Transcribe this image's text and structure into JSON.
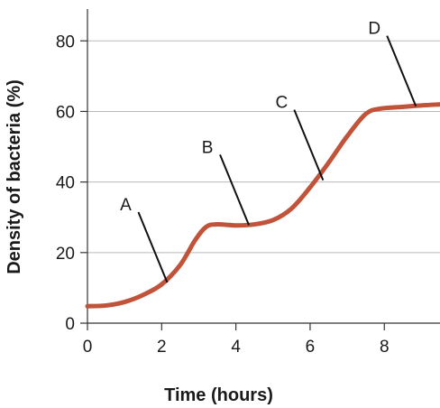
{
  "chart_data": {
    "type": "line",
    "title": "",
    "xlabel": "Time (hours)",
    "ylabel": "Density of bacteria (%)",
    "xlim": [
      0,
      9.5
    ],
    "ylim": [
      0,
      88
    ],
    "x_ticks": [
      0,
      2,
      4,
      6,
      8
    ],
    "y_ticks": [
      0,
      20,
      40,
      60,
      80
    ],
    "grid": "horizontal",
    "series": [
      {
        "color": "#c0533a",
        "x": [
          0,
          0.5,
          1.0,
          1.5,
          2.0,
          2.5,
          2.9,
          3.2,
          3.5,
          4.0,
          4.5,
          5.0,
          5.5,
          6.0,
          6.5,
          7.0,
          7.5,
          7.9,
          8.5,
          9.0,
          9.5
        ],
        "y": [
          4.8,
          5.0,
          6.0,
          8.0,
          11.0,
          16.5,
          23.5,
          27.3,
          28.0,
          27.7,
          28.0,
          29.2,
          32.5,
          38.5,
          45.5,
          53.0,
          59.3,
          60.8,
          61.3,
          61.7,
          62.0
        ]
      }
    ],
    "annotations": [
      {
        "label": "A",
        "point": [
          2.15,
          11.5
        ]
      },
      {
        "label": "B",
        "point": [
          4.35,
          27.8
        ]
      },
      {
        "label": "C",
        "point": [
          6.35,
          40.5
        ]
      },
      {
        "label": "D",
        "point": [
          8.85,
          61.5
        ]
      }
    ]
  }
}
